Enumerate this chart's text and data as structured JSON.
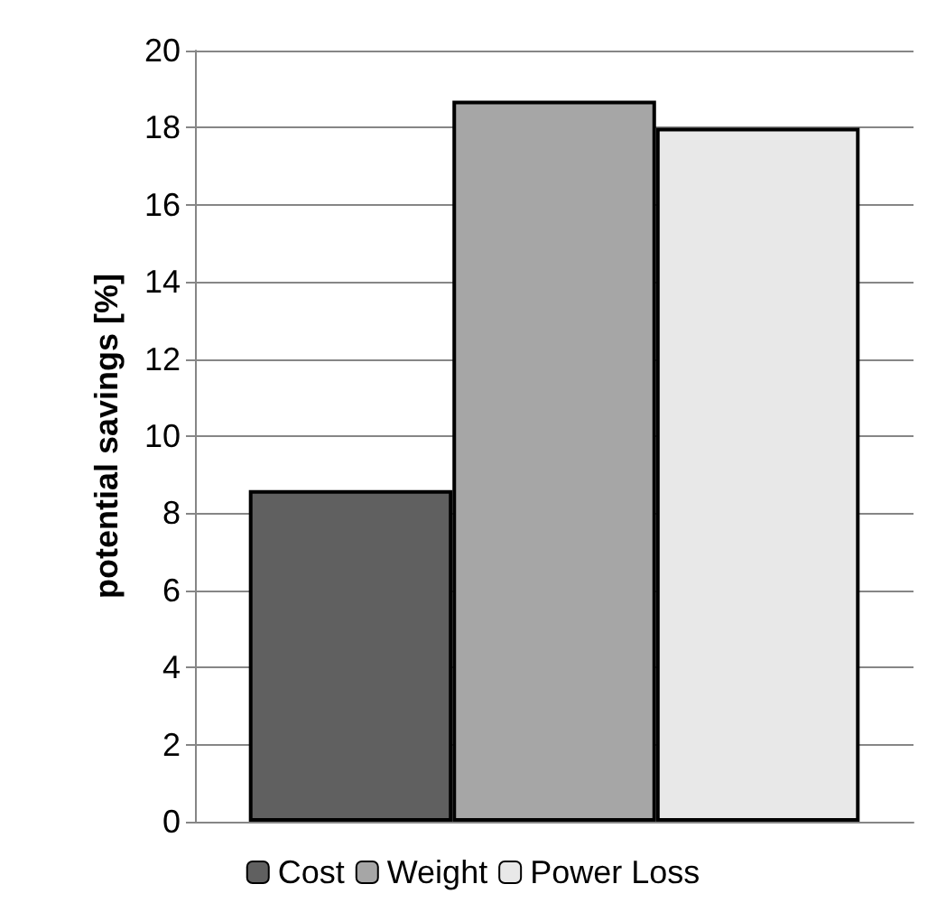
{
  "chart_data": {
    "type": "bar",
    "ylabel": "potential savings [%]",
    "categories": [
      null
    ],
    "series": [
      {
        "name": "Cost",
        "color": "#606060",
        "values": [
          8.6
        ]
      },
      {
        "name": "Weight",
        "color": "#a6a6a6",
        "values": [
          18.7
        ]
      },
      {
        "name": "Power Loss",
        "color": "#e8e8e8",
        "values": [
          18.0
        ]
      }
    ],
    "ylim": [
      0,
      20
    ],
    "yticks": [
      0,
      2,
      4,
      6,
      8,
      10,
      12,
      14,
      16,
      18,
      20
    ],
    "grid": "y",
    "legend": "bottom"
  }
}
